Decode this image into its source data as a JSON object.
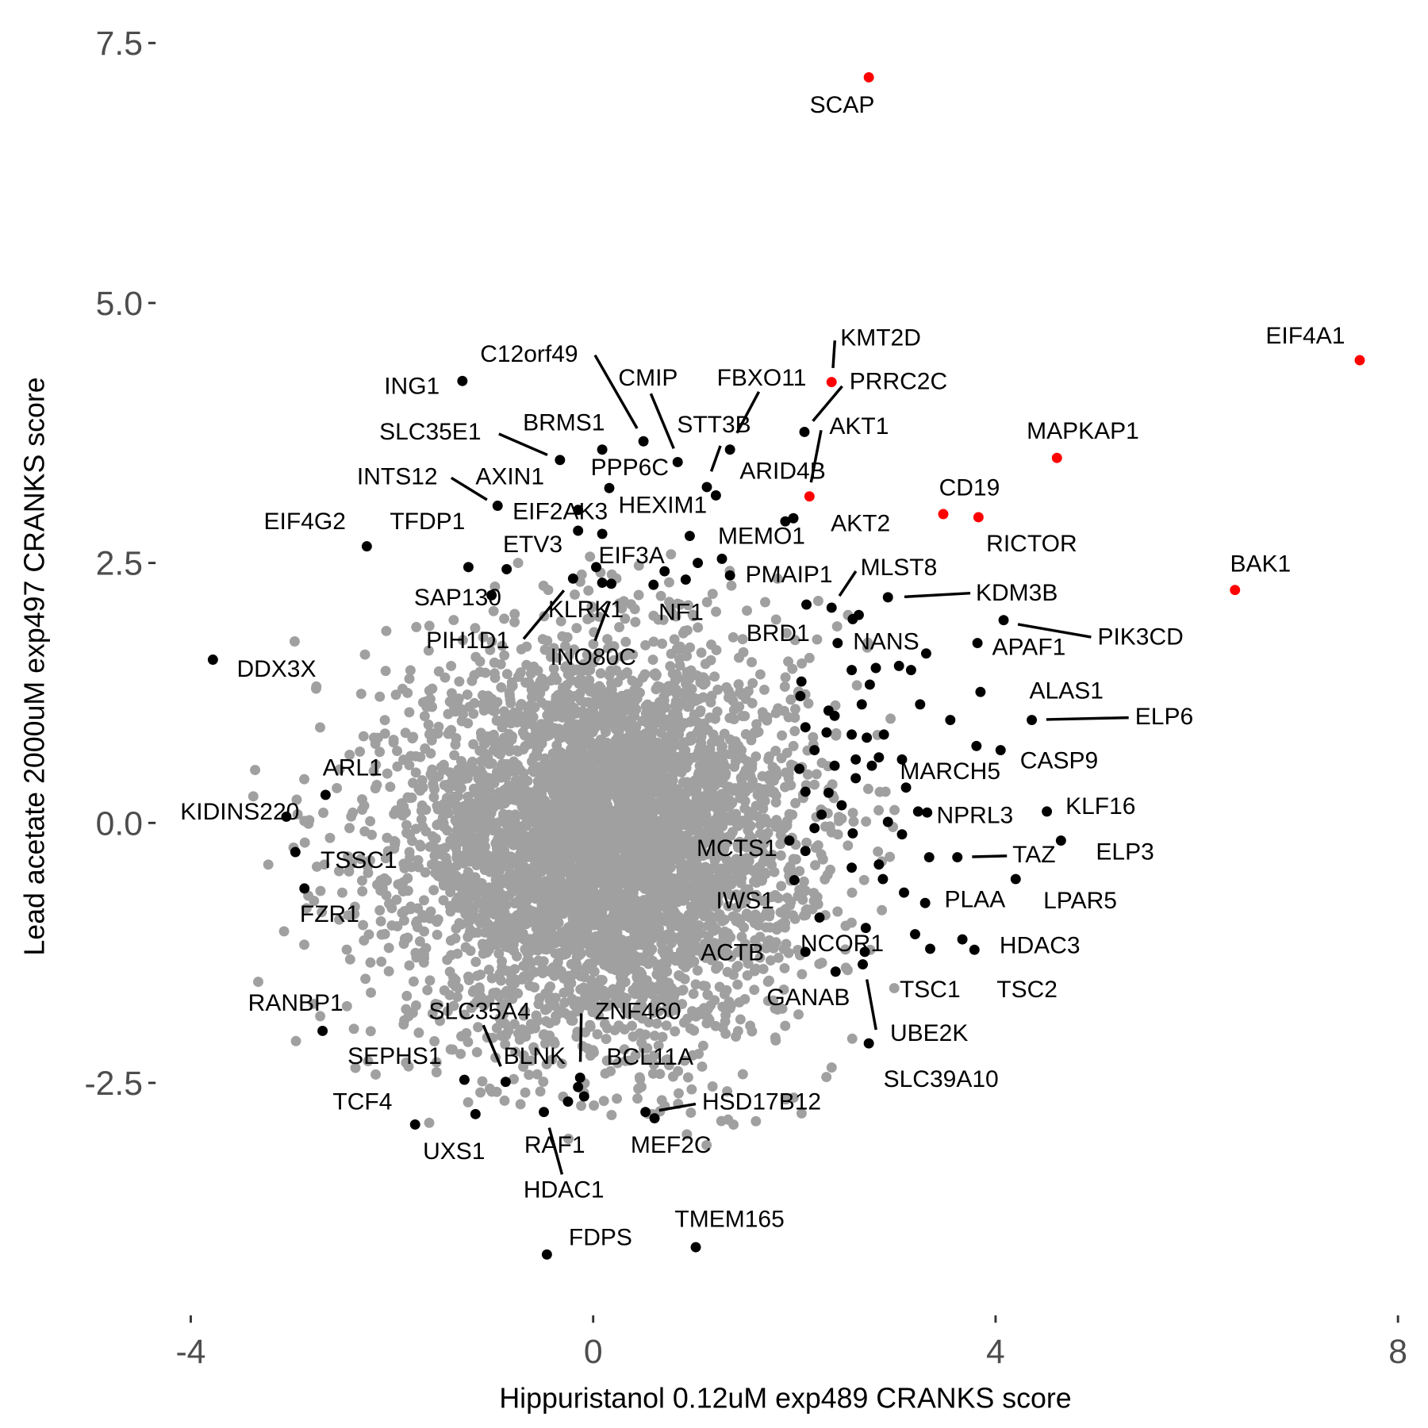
{
  "chart_data": {
    "type": "scatter",
    "title": "",
    "xlabel": "Hippuristanol 0.12uM exp489 CRANKS score",
    "ylabel": "Lead acetate 2000uM exp497 CRANKS score",
    "xlim": [
      -4.2,
      8.2
    ],
    "ylim": [
      -4.6,
      7.8
    ],
    "x_ticks": [
      {
        "value": -4,
        "label": "-4"
      },
      {
        "value": 0,
        "label": "0"
      },
      {
        "value": 4,
        "label": "4"
      },
      {
        "value": 8,
        "label": "8"
      }
    ],
    "y_ticks": [
      {
        "value": 7.5,
        "label": "7.5"
      },
      {
        "value": 5.0,
        "label": "5.0"
      },
      {
        "value": 2.5,
        "label": "2.5"
      },
      {
        "value": 0.0,
        "label": "0.0"
      },
      {
        "value": -2.5,
        "label": "-2.5"
      }
    ],
    "grid": false,
    "legend": "none",
    "colors": {
      "background_genes": "#a0a0a0",
      "highlighted": "#000000",
      "top_hits": "#ff0000"
    },
    "background_cloud": {
      "description_note": "",
      "center": [
        0.1,
        -0.2
      ],
      "spread": [
        0.95,
        0.9
      ]
    },
    "labeled_points": [
      {
        "gene": "SCAP",
        "x": 2.74,
        "y": 7.17,
        "group": "top_hits"
      },
      {
        "gene": "EIF4A1",
        "x": 7.62,
        "y": 4.45,
        "group": "top_hits"
      },
      {
        "gene": "KMT2D",
        "x": 2.37,
        "y": 4.24,
        "group": "top_hits"
      },
      {
        "gene": "PRRC2C",
        "x": 2.1,
        "y": 3.76,
        "group": "highlighted"
      },
      {
        "gene": "AKT1",
        "x": 2.15,
        "y": 3.14,
        "group": "top_hits"
      },
      {
        "gene": "STT3B",
        "x": 1.13,
        "y": 3.23,
        "group": "highlighted"
      },
      {
        "gene": "FBXO11",
        "x": 1.36,
        "y": 3.59,
        "group": "highlighted"
      },
      {
        "gene": "ARID4B",
        "x": 1.22,
        "y": 3.15,
        "group": "highlighted"
      },
      {
        "gene": "AKT2",
        "x": 1.99,
        "y": 2.93,
        "group": "highlighted"
      },
      {
        "gene": "C12orf49",
        "x": 0.5,
        "y": 3.67,
        "group": "highlighted"
      },
      {
        "gene": "CMIP",
        "x": 0.84,
        "y": 3.47,
        "group": "highlighted"
      },
      {
        "gene": "ING1",
        "x": -1.3,
        "y": 4.25,
        "group": "highlighted"
      },
      {
        "gene": "SLC35E1",
        "x": -0.33,
        "y": 3.49,
        "group": "highlighted"
      },
      {
        "gene": "BRMS1",
        "x": 0.09,
        "y": 3.59,
        "group": "highlighted"
      },
      {
        "gene": "PPP6C",
        "x": 0.16,
        "y": 3.22,
        "group": "highlighted"
      },
      {
        "gene": "INTS12",
        "x": -0.95,
        "y": 3.05,
        "group": "highlighted"
      },
      {
        "gene": "AXIN1",
        "x": -0.15,
        "y": 3.01,
        "group": "highlighted"
      },
      {
        "gene": "EIF4G2",
        "x": -2.25,
        "y": 2.66,
        "group": "highlighted"
      },
      {
        "gene": "TFDP1",
        "x": -1.24,
        "y": 2.46,
        "group": "highlighted"
      },
      {
        "gene": "ETV3",
        "x": -0.86,
        "y": 2.44,
        "group": "highlighted"
      },
      {
        "gene": "EIF2AK3",
        "x": -0.15,
        "y": 2.81,
        "group": "highlighted"
      },
      {
        "gene": "HEXIM1",
        "x": 0.09,
        "y": 2.78,
        "group": "highlighted"
      },
      {
        "gene": "MEMO1",
        "x": 0.96,
        "y": 2.76,
        "group": "highlighted"
      },
      {
        "gene": "EIF3A",
        "x": 0.03,
        "y": 2.46,
        "group": "highlighted"
      },
      {
        "gene": "PMAIP1",
        "x": 1.36,
        "y": 2.38,
        "group": "highlighted"
      },
      {
        "gene": "MLST8",
        "x": 2.37,
        "y": 2.07,
        "group": "highlighted"
      },
      {
        "gene": "KDM3B",
        "x": 2.93,
        "y": 2.17,
        "group": "highlighted"
      },
      {
        "gene": "SAP130",
        "x": -1.01,
        "y": 2.19,
        "group": "highlighted"
      },
      {
        "gene": "KLRK1",
        "x": 0.09,
        "y": 2.31,
        "group": "highlighted"
      },
      {
        "gene": "NF1",
        "x": 0.71,
        "y": 2.42,
        "group": "highlighted"
      },
      {
        "gene": "PIH1D1",
        "x": -0.2,
        "y": 2.35,
        "group": "highlighted"
      },
      {
        "gene": "INO80C",
        "x": 0.18,
        "y": 2.3,
        "group": "highlighted"
      },
      {
        "gene": "BRD1",
        "x": 2.12,
        "y": 2.1,
        "group": "highlighted"
      },
      {
        "gene": "NANS",
        "x": 2.43,
        "y": 1.73,
        "group": "highlighted"
      },
      {
        "gene": "APAF1",
        "x": 3.82,
        "y": 1.73,
        "group": "highlighted"
      },
      {
        "gene": "PIK3CD",
        "x": 4.08,
        "y": 1.95,
        "group": "highlighted"
      },
      {
        "gene": "ALAS1",
        "x": 3.85,
        "y": 1.26,
        "group": "highlighted"
      },
      {
        "gene": "ELP6",
        "x": 4.36,
        "y": 0.99,
        "group": "highlighted"
      },
      {
        "gene": "CASP9",
        "x": 4.05,
        "y": 0.7,
        "group": "highlighted"
      },
      {
        "gene": "MARCH5",
        "x": 3.11,
        "y": 0.34,
        "group": "highlighted"
      },
      {
        "gene": "KLF16",
        "x": 4.51,
        "y": 0.11,
        "group": "highlighted"
      },
      {
        "gene": "NPRL3",
        "x": 3.32,
        "y": 0.1,
        "group": "highlighted"
      },
      {
        "gene": "ELP3",
        "x": 4.65,
        "y": -0.17,
        "group": "highlighted"
      },
      {
        "gene": "TAZ",
        "x": 3.62,
        "y": -0.33,
        "group": "highlighted"
      },
      {
        "gene": "LPAR5",
        "x": 4.2,
        "y": -0.54,
        "group": "highlighted"
      },
      {
        "gene": "PLAA",
        "x": 3.3,
        "y": -0.77,
        "group": "highlighted"
      },
      {
        "gene": "HDAC3",
        "x": 3.79,
        "y": -1.22,
        "group": "highlighted"
      },
      {
        "gene": "TSC1",
        "x": 3.35,
        "y": -1.21,
        "group": "highlighted"
      },
      {
        "gene": "TSC2",
        "x": 3.67,
        "y": -1.12,
        "group": "highlighted"
      },
      {
        "gene": "NCOR1",
        "x": 2.7,
        "y": -1.24,
        "group": "highlighted"
      },
      {
        "gene": "GANAB",
        "x": 2.41,
        "y": -1.43,
        "group": "highlighted"
      },
      {
        "gene": "UBE2K",
        "x": 2.68,
        "y": -1.36,
        "group": "highlighted"
      },
      {
        "gene": "SLC39A10",
        "x": 2.74,
        "y": -2.12,
        "group": "highlighted"
      },
      {
        "gene": "MCTS1",
        "x": 1.95,
        "y": -0.17,
        "group": "highlighted"
      },
      {
        "gene": "IWS1",
        "x": 2.0,
        "y": -0.55,
        "group": "highlighted"
      },
      {
        "gene": "ACTB",
        "x": 2.11,
        "y": -1.24,
        "group": "highlighted"
      },
      {
        "gene": "DDX3X",
        "x": -3.78,
        "y": 1.57,
        "group": "highlighted"
      },
      {
        "gene": "ARL1",
        "x": -2.66,
        "y": 0.27,
        "group": "highlighted"
      },
      {
        "gene": "KIDINS220",
        "x": -3.05,
        "y": 0.06,
        "group": "highlighted"
      },
      {
        "gene": "TSSC1",
        "x": -2.96,
        "y": -0.28,
        "group": "highlighted"
      },
      {
        "gene": "FZR1",
        "x": -2.87,
        "y": -0.63,
        "group": "highlighted"
      },
      {
        "gene": "RANBP1",
        "x": -2.69,
        "y": -2.0,
        "group": "highlighted"
      },
      {
        "gene": "SEPHS1",
        "x": -1.28,
        "y": -2.47,
        "group": "highlighted"
      },
      {
        "gene": "SLC35A4",
        "x": -0.87,
        "y": -2.49,
        "group": "highlighted"
      },
      {
        "gene": "BLNK",
        "x": -0.15,
        "y": -2.54,
        "group": "highlighted"
      },
      {
        "gene": "ZNF460",
        "x": -0.13,
        "y": -2.45,
        "group": "highlighted"
      },
      {
        "gene": "BCL11A",
        "x": -0.09,
        "y": -2.63,
        "group": "highlighted"
      },
      {
        "gene": "TCF4",
        "x": -1.77,
        "y": -2.9,
        "group": "highlighted"
      },
      {
        "gene": "UXS1",
        "x": -1.17,
        "y": -2.8,
        "group": "highlighted"
      },
      {
        "gene": "RAF1",
        "x": -0.25,
        "y": -2.68,
        "group": "highlighted"
      },
      {
        "gene": "HDAC1",
        "x": -0.49,
        "y": -2.78,
        "group": "highlighted"
      },
      {
        "gene": "HSD17B12",
        "x": 0.61,
        "y": -2.84,
        "group": "highlighted"
      },
      {
        "gene": "MEF2C",
        "x": 0.52,
        "y": -2.78,
        "group": "highlighted"
      },
      {
        "gene": "FDPS",
        "x": -0.46,
        "y": -4.15,
        "group": "highlighted"
      },
      {
        "gene": "TMEM165",
        "x": 1.02,
        "y": -4.08,
        "group": "highlighted"
      },
      {
        "gene": "CD19",
        "x": 3.48,
        "y": 2.97,
        "group": "top_hits"
      },
      {
        "gene": "RICTOR",
        "x": 3.83,
        "y": 2.94,
        "group": "top_hits"
      },
      {
        "gene": "MAPKAP1",
        "x": 4.61,
        "y": 3.51,
        "group": "top_hits"
      },
      {
        "gene": "BAK1",
        "x": 6.38,
        "y": 2.24,
        "group": "top_hits"
      }
    ],
    "unlabeled_highlighted_points": [
      [
        1.04,
        2.5
      ],
      [
        1.28,
        2.54
      ],
      [
        0.92,
        2.34
      ],
      [
        0.6,
        2.29
      ],
      [
        2.64,
        2.0
      ],
      [
        2.58,
        1.96
      ],
      [
        2.07,
        1.36
      ],
      [
        2.06,
        1.22
      ],
      [
        2.34,
        1.08
      ],
      [
        2.4,
        1.03
      ],
      [
        2.67,
        1.14
      ],
      [
        2.75,
        1.33
      ],
      [
        2.81,
        1.49
      ],
      [
        2.57,
        1.47
      ],
      [
        3.04,
        1.51
      ],
      [
        3.16,
        1.47
      ],
      [
        3.31,
        1.63
      ],
      [
        3.25,
        1.14
      ],
      [
        3.55,
        0.99
      ],
      [
        3.81,
        0.74
      ],
      [
        2.32,
        0.87
      ],
      [
        2.57,
        0.85
      ],
      [
        2.72,
        0.82
      ],
      [
        2.89,
        0.85
      ],
      [
        2.2,
        0.7
      ],
      [
        2.4,
        0.55
      ],
      [
        2.61,
        0.61
      ],
      [
        2.84,
        0.63
      ],
      [
        3.07,
        0.61
      ],
      [
        2.05,
        0.52
      ],
      [
        2.34,
        0.29
      ],
      [
        2.61,
        0.43
      ],
      [
        2.27,
        0.08
      ],
      [
        2.47,
        0.17
      ],
      [
        2.2,
        -0.05
      ],
      [
        2.58,
        -0.1
      ],
      [
        2.93,
        0.01
      ],
      [
        3.07,
        -0.11
      ],
      [
        2.11,
        -0.27
      ],
      [
        2.57,
        -0.43
      ],
      [
        2.84,
        -0.4
      ],
      [
        3.34,
        -0.33
      ],
      [
        2.88,
        -0.54
      ],
      [
        3.09,
        -0.67
      ],
      [
        2.25,
        -0.91
      ],
      [
        2.71,
        -1.01
      ],
      [
        3.2,
        -1.07
      ],
      [
        2.11,
        0.92
      ],
      [
        2.77,
        0.55
      ],
      [
        3.23,
        0.11
      ],
      [
        2.11,
        0.3
      ],
      [
        1.91,
        2.9
      ]
    ]
  }
}
